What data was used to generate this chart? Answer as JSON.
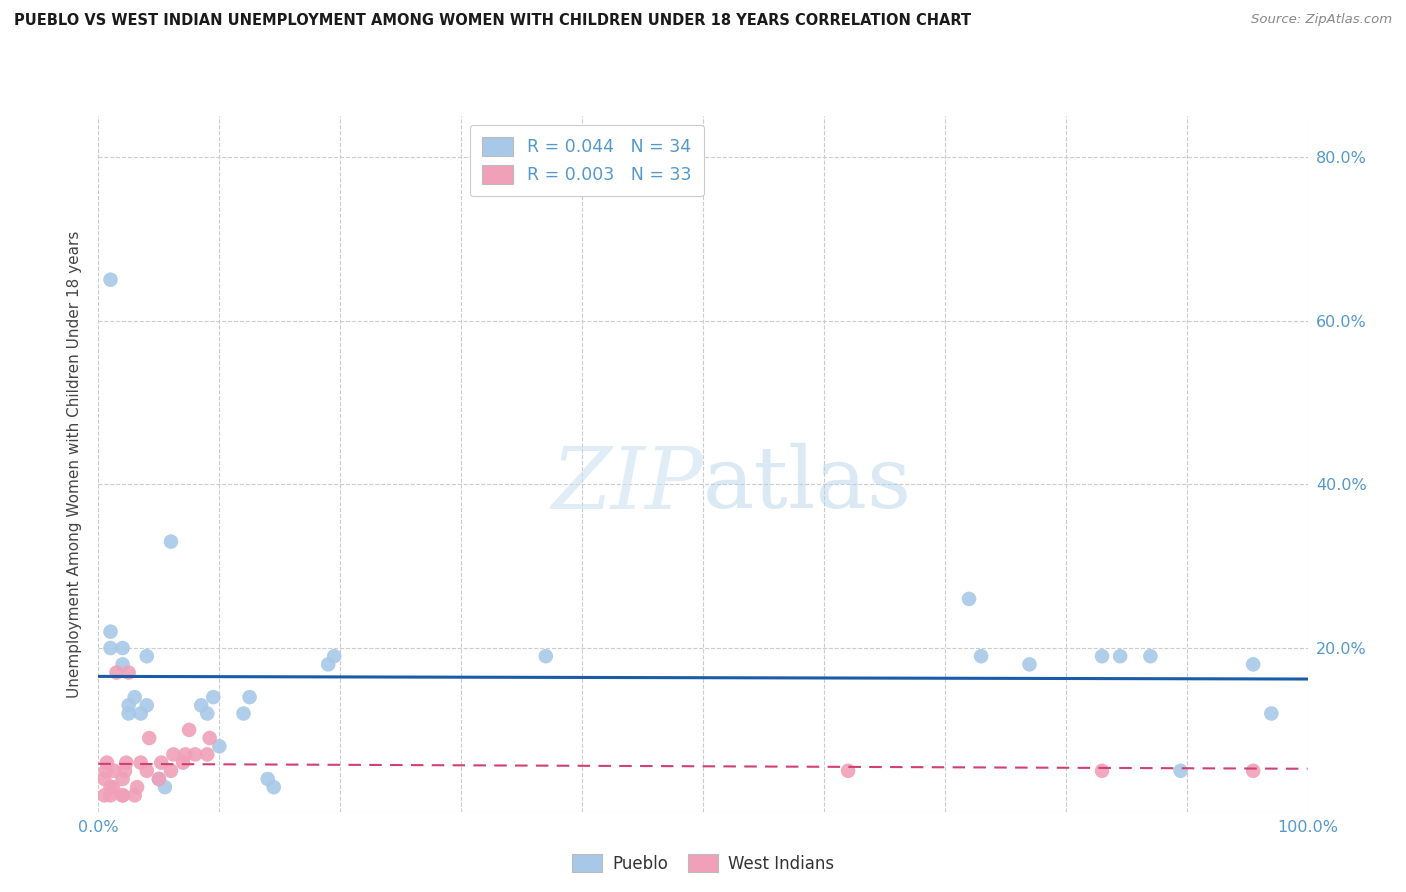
{
  "title": "PUEBLO VS WEST INDIAN UNEMPLOYMENT AMONG WOMEN WITH CHILDREN UNDER 18 YEARS CORRELATION CHART",
  "source": "Source: ZipAtlas.com",
  "ylabel": "Unemployment Among Women with Children Under 18 years",
  "xlim": [
    0,
    1.0
  ],
  "ylim": [
    0,
    0.85
  ],
  "xticks": [
    0.0,
    0.1,
    0.2,
    0.3,
    0.4,
    0.5,
    0.6,
    0.7,
    0.8,
    0.9,
    1.0
  ],
  "xticklabels": [
    "0.0%",
    "",
    "",
    "",
    "",
    "",
    "",
    "",
    "",
    "",
    "100.0%"
  ],
  "yticks": [
    0.0,
    0.2,
    0.4,
    0.6,
    0.8
  ],
  "yticklabels": [
    "",
    "20.0%",
    "40.0%",
    "60.0%",
    "80.0%"
  ],
  "watermark_zip": "ZIP",
  "watermark_atlas": "atlas",
  "pueblo_R": 0.044,
  "pueblo_N": 34,
  "wi_R": 0.003,
  "wi_N": 33,
  "pueblo_color": "#a8c8e8",
  "pueblo_line_color": "#1a5ca8",
  "wi_color": "#f0a0b8",
  "wi_line_color": "#d04070",
  "tick_color": "#5599cc",
  "pueblo_x": [
    0.01,
    0.01,
    0.01,
    0.02,
    0.02,
    0.025,
    0.025,
    0.03,
    0.035,
    0.04,
    0.04,
    0.05,
    0.055,
    0.06,
    0.085,
    0.09,
    0.095,
    0.1,
    0.12,
    0.125,
    0.14,
    0.145,
    0.19,
    0.195,
    0.37,
    0.72,
    0.73,
    0.77,
    0.83,
    0.845,
    0.87,
    0.895,
    0.955,
    0.97
  ],
  "pueblo_y": [
    0.65,
    0.22,
    0.2,
    0.2,
    0.18,
    0.13,
    0.12,
    0.14,
    0.12,
    0.19,
    0.13,
    0.04,
    0.03,
    0.33,
    0.13,
    0.12,
    0.14,
    0.08,
    0.12,
    0.14,
    0.04,
    0.03,
    0.18,
    0.19,
    0.19,
    0.26,
    0.19,
    0.18,
    0.19,
    0.19,
    0.19,
    0.05,
    0.18,
    0.12
  ],
  "wi_x": [
    0.005,
    0.005,
    0.006,
    0.007,
    0.01,
    0.01,
    0.012,
    0.013,
    0.015,
    0.02,
    0.02,
    0.02,
    0.022,
    0.023,
    0.025,
    0.03,
    0.032,
    0.035,
    0.04,
    0.042,
    0.05,
    0.052,
    0.06,
    0.062,
    0.07,
    0.072,
    0.075,
    0.08,
    0.09,
    0.092,
    0.62,
    0.83,
    0.955
  ],
  "wi_y": [
    0.02,
    0.04,
    0.05,
    0.06,
    0.02,
    0.03,
    0.03,
    0.05,
    0.17,
    0.02,
    0.02,
    0.04,
    0.05,
    0.06,
    0.17,
    0.02,
    0.03,
    0.06,
    0.05,
    0.09,
    0.04,
    0.06,
    0.05,
    0.07,
    0.06,
    0.07,
    0.1,
    0.07,
    0.07,
    0.09,
    0.05,
    0.05,
    0.05
  ]
}
